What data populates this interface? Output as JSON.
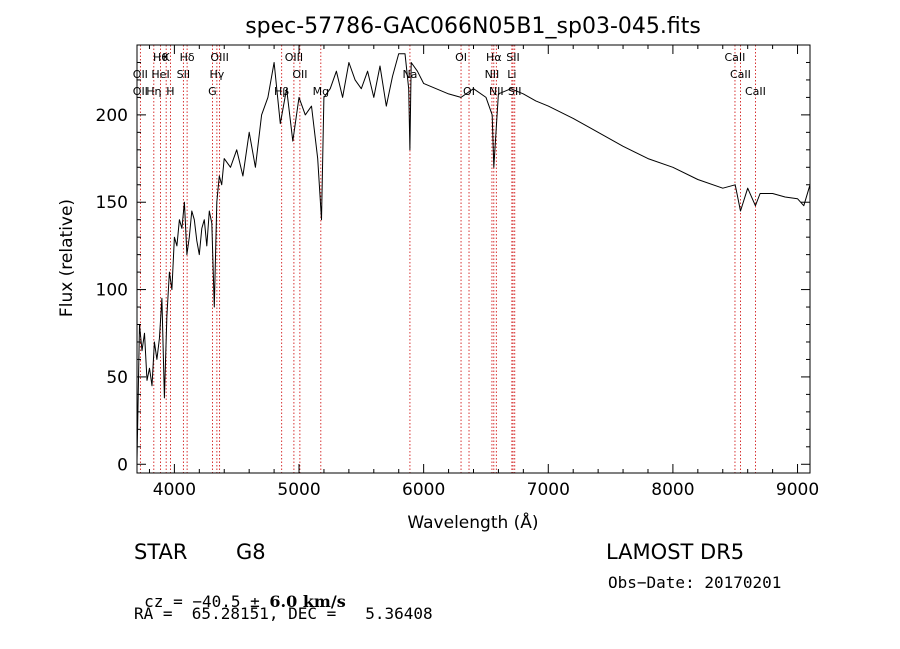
{
  "chart_data": {
    "type": "line",
    "title": "spec-57786-GAC066N05B1_sp03-045.fits",
    "xlabel": "Wavelength (Å)",
    "ylabel": "Flux (relative)",
    "xlim": [
      3700,
      9100
    ],
    "ylim": [
      -5,
      240
    ],
    "x_ticks": [
      4000,
      5000,
      6000,
      7000,
      8000,
      9000
    ],
    "y_ticks": [
      0,
      50,
      100,
      150,
      200
    ],
    "grid": false,
    "line_color": "#000000",
    "marker_color": "#cc0000",
    "series": [
      {
        "x": [
          3700,
          3720,
          3740,
          3760,
          3780,
          3800,
          3820,
          3840,
          3860,
          3880,
          3900,
          3920,
          3940,
          3960,
          3980,
          4000,
          4020,
          4040,
          4060,
          4080,
          4100,
          4120,
          4140,
          4160,
          4180,
          4200,
          4220,
          4240,
          4260,
          4280,
          4300,
          4320,
          4340,
          4360,
          4380,
          4400,
          4450,
          4500,
          4550,
          4600,
          4650,
          4700,
          4750,
          4800,
          4850,
          4900,
          4950,
          5000,
          5050,
          5100,
          5150,
          5180,
          5200,
          5250,
          5300,
          5350,
          5400,
          5450,
          5500,
          5550,
          5600,
          5650,
          5700,
          5750,
          5800,
          5850,
          5880,
          5890,
          5900,
          5950,
          6000,
          6100,
          6200,
          6300,
          6400,
          6500,
          6550,
          6563,
          6600,
          6700,
          6800,
          6900,
          7000,
          7200,
          7400,
          7600,
          7800,
          8000,
          8200,
          8400,
          8500,
          8542,
          8600,
          8662,
          8700,
          8800,
          8900,
          9000,
          9050,
          9100
        ],
        "y": [
          2,
          80,
          65,
          75,
          48,
          55,
          45,
          70,
          60,
          72,
          95,
          38,
          85,
          110,
          100,
          130,
          125,
          140,
          135,
          150,
          120,
          130,
          145,
          140,
          128,
          120,
          135,
          140,
          125,
          145,
          138,
          90,
          150,
          165,
          160,
          175,
          170,
          180,
          165,
          190,
          170,
          200,
          210,
          230,
          195,
          215,
          185,
          210,
          200,
          205,
          175,
          140,
          210,
          215,
          225,
          210,
          230,
          220,
          215,
          225,
          210,
          228,
          205,
          222,
          235,
          235,
          215,
          180,
          230,
          225,
          218,
          215,
          212,
          210,
          215,
          210,
          200,
          170,
          212,
          215,
          212,
          208,
          205,
          198,
          190,
          182,
          175,
          170,
          163,
          158,
          160,
          145,
          158,
          148,
          155,
          155,
          153,
          152,
          148,
          160
        ]
      }
    ],
    "line_markers": [
      {
        "x": 3889,
        "label": "Hθ",
        "row": 1
      },
      {
        "x": 3727,
        "label": "OII",
        "row": 2
      },
      {
        "x": 3727,
        "label": "OII",
        "row": 3
      },
      {
        "x": 3835,
        "label": "Hη",
        "row": 3
      },
      {
        "x": 3934,
        "label": "K",
        "row": 1
      },
      {
        "x": 3889,
        "label": "HeI",
        "row": 2
      },
      {
        "x": 3968,
        "label": "H",
        "row": 3
      },
      {
        "x": 4072,
        "label": "SII",
        "row": 2
      },
      {
        "x": 4102,
        "label": "Hδ",
        "row": 1
      },
      {
        "x": 4341,
        "label": "Hγ",
        "row": 2
      },
      {
        "x": 4305,
        "label": "G",
        "row": 3
      },
      {
        "x": 4363,
        "label": "OIII",
        "row": 1
      },
      {
        "x": 4861,
        "label": "Hβ",
        "row": 3
      },
      {
        "x": 4959,
        "label": "OIII",
        "row": 1
      },
      {
        "x": 5007,
        "label": "OII",
        "row": 2
      },
      {
        "x": 5175,
        "label": "Mg",
        "row": 3
      },
      {
        "x": 5890,
        "label": "Na",
        "row": 2
      },
      {
        "x": 6300,
        "label": "OI",
        "row": 1
      },
      {
        "x": 6364,
        "label": "OI",
        "row": 3
      },
      {
        "x": 6563,
        "label": "Hα",
        "row": 1
      },
      {
        "x": 6548,
        "label": "NII",
        "row": 2
      },
      {
        "x": 6583,
        "label": "NII",
        "row": 3
      },
      {
        "x": 6717,
        "label": "SII",
        "row": 1
      },
      {
        "x": 6708,
        "label": "Li",
        "row": 2
      },
      {
        "x": 6731,
        "label": "SII",
        "row": 3
      },
      {
        "x": 8498,
        "label": "CaII",
        "row": 1
      },
      {
        "x": 8542,
        "label": "CaII",
        "row": 2
      },
      {
        "x": 8662,
        "label": "CaII",
        "row": 3
      }
    ]
  },
  "info": {
    "object_class": "STAR",
    "subclass": "G8",
    "survey": "LAMOST DR5",
    "cz_prefix": "cz = ",
    "cz_value": "−40.5",
    "cz_pm": " ± ",
    "cz_err": "6.0",
    "cz_unit": " km/s",
    "obs_date": "Obs−Date: 20170201",
    "coords": "RA =  65.28151, DEC =   5.36408"
  }
}
